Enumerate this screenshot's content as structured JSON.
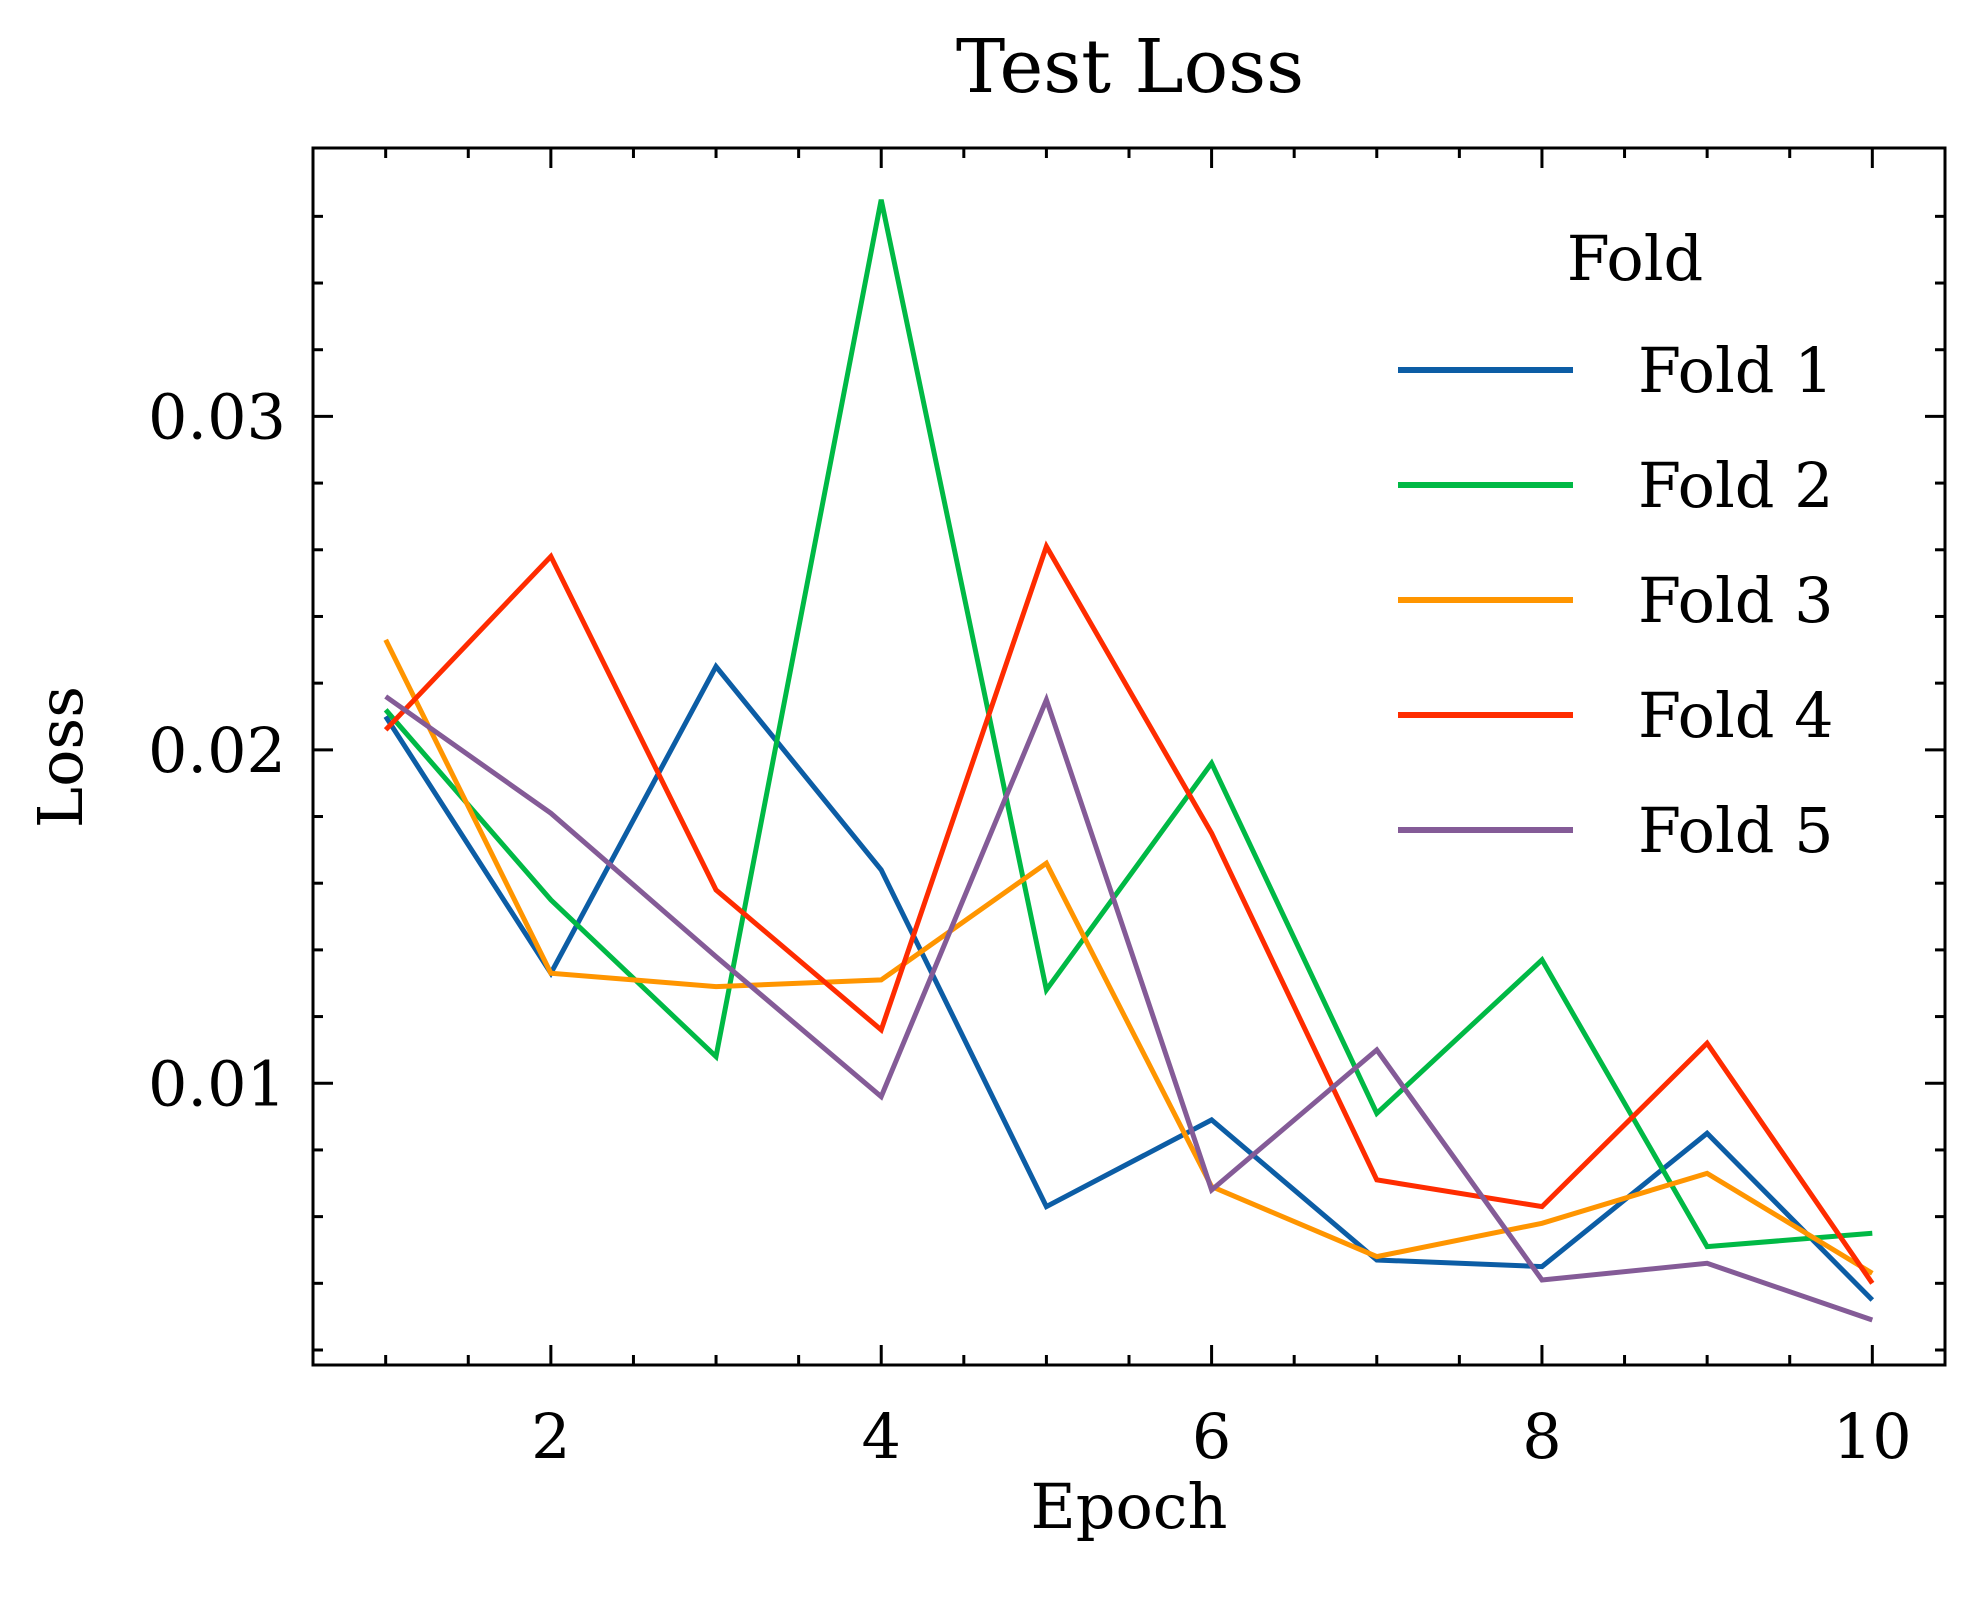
{
  "chart_data": {
    "type": "line",
    "title": "Test Loss",
    "xlabel": "Epoch",
    "ylabel": "Loss",
    "x": [
      1,
      2,
      3,
      4,
      5,
      6,
      7,
      8,
      9,
      10
    ],
    "xlim": [
      0.56,
      10.44
    ],
    "ylim": [
      0.00155,
      0.03805
    ],
    "xticks": [
      2,
      4,
      6,
      8,
      10
    ],
    "xtick_labels": [
      "2",
      "4",
      "6",
      "8",
      "10"
    ],
    "yticks": [
      0.01,
      0.02,
      0.03
    ],
    "ytick_labels": [
      "0.01",
      "0.02",
      "0.03"
    ],
    "grid": false,
    "legend": {
      "title": "Fold",
      "position": "top-right"
    },
    "series": [
      {
        "name": "Fold 1",
        "color": "#0C5DA5",
        "values": [
          0.021,
          0.0133,
          0.0225,
          0.0164,
          0.0063,
          0.0089,
          0.0047,
          0.0045,
          0.0085,
          0.0035
        ]
      },
      {
        "name": "Fold 2",
        "color": "#00B945",
        "values": [
          0.0212,
          0.0155,
          0.0108,
          0.0365,
          0.0128,
          0.0196,
          0.0091,
          0.0137,
          0.0051,
          0.0055
        ]
      },
      {
        "name": "Fold 3",
        "color": "#FF9500",
        "values": [
          0.0233,
          0.0133,
          0.0129,
          0.0131,
          0.0166,
          0.0069,
          0.0048,
          0.0058,
          0.0073,
          0.0043
        ]
      },
      {
        "name": "Fold 4",
        "color": "#FF2C00",
        "values": [
          0.0206,
          0.0258,
          0.0158,
          0.0116,
          0.0261,
          0.0175,
          0.0071,
          0.0063,
          0.0112,
          0.004
        ]
      },
      {
        "name": "Fold 5",
        "color": "#845B97",
        "values": [
          0.0216,
          0.0181,
          0.0138,
          0.0096,
          0.0215,
          0.0068,
          0.011,
          0.0041,
          0.0046,
          0.0029
        ]
      }
    ]
  }
}
